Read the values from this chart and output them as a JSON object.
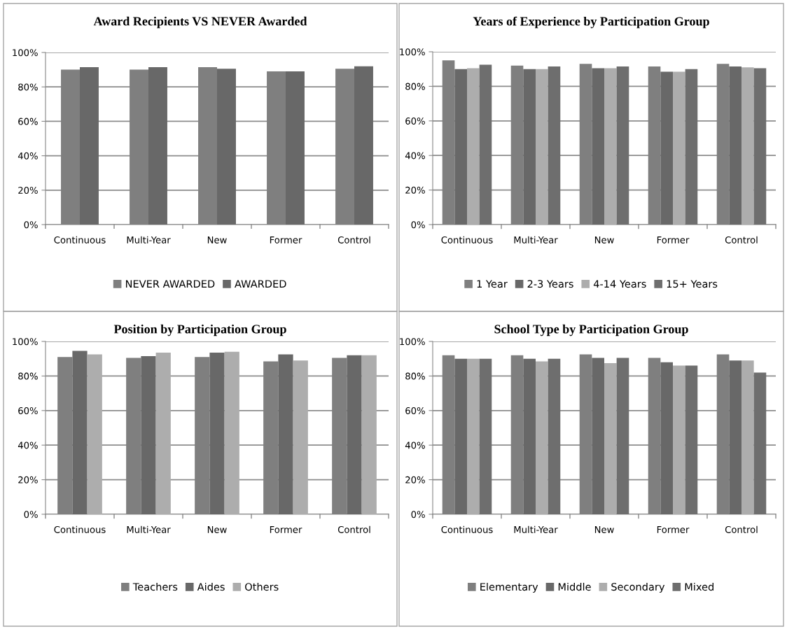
{
  "chart_data": [
    {
      "type": "bar",
      "title": "Award Recipients VS NEVER Awarded",
      "categories": [
        "Continuous",
        "Multi-Year",
        "New",
        "Former",
        "Control"
      ],
      "ylim": [
        0,
        100
      ],
      "yticks": [
        {
          "value": 0,
          "label": "0%"
        },
        {
          "value": 20,
          "label": "20%"
        },
        {
          "value": 40,
          "label": "40%"
        },
        {
          "value": 60,
          "label": "60%"
        },
        {
          "value": 80,
          "label": "80%"
        },
        {
          "value": 100,
          "label": "100%"
        }
      ],
      "grid": "y",
      "legend": "bottom",
      "series": [
        {
          "name": "NEVER AWARDED",
          "color": "#7f7f7f",
          "values": [
            90,
            90,
            91.5,
            89,
            90.5
          ]
        },
        {
          "name": "AWARDED",
          "color": "#686868",
          "values": [
            91.5,
            91.5,
            90.5,
            89,
            92
          ]
        }
      ]
    },
    {
      "type": "bar",
      "title": "Years of Experience by Participation Group",
      "categories": [
        "Continuous",
        "Multi-Year",
        "New",
        "Former",
        "Control"
      ],
      "ylim": [
        0,
        100
      ],
      "yticks": [
        {
          "value": 0,
          "label": "0%"
        },
        {
          "value": 20,
          "label": "20%"
        },
        {
          "value": 40,
          "label": "40%"
        },
        {
          "value": 60,
          "label": "60%"
        },
        {
          "value": 80,
          "label": "80%"
        },
        {
          "value": 100,
          "label": "100%"
        }
      ],
      "grid": "y",
      "legend": "bottom",
      "series": [
        {
          "name": "1 Year",
          "color": "#7f7f7f",
          "values": [
            95,
            92,
            93,
            91.5,
            93
          ]
        },
        {
          "name": "2-3 Years",
          "color": "#686868",
          "values": [
            90,
            90,
            90.5,
            88.5,
            91.5
          ]
        },
        {
          "name": "4-14 Years",
          "color": "#adadad",
          "values": [
            90.5,
            90,
            90.5,
            88.5,
            91
          ]
        },
        {
          "name": "15+ Years",
          "color": "#6e6e6e",
          "values": [
            92.5,
            91.5,
            91.5,
            90,
            90.5
          ]
        }
      ]
    },
    {
      "type": "bar",
      "title": "Position by Participation Group",
      "categories": [
        "Continuous",
        "Multi-Year",
        "New",
        "Former",
        "Control"
      ],
      "ylim": [
        0,
        100
      ],
      "yticks": [
        {
          "value": 0,
          "label": "0%"
        },
        {
          "value": 20,
          "label": "20%"
        },
        {
          "value": 40,
          "label": "40%"
        },
        {
          "value": 60,
          "label": "60%"
        },
        {
          "value": 80,
          "label": "80%"
        },
        {
          "value": 100,
          "label": "100%"
        }
      ],
      "grid": "y",
      "legend": "bottom",
      "series": [
        {
          "name": "Teachers",
          "color": "#7f7f7f",
          "values": [
            91,
            90.5,
            91,
            88.5,
            90.5
          ]
        },
        {
          "name": "Aides",
          "color": "#686868",
          "values": [
            94.5,
            91.5,
            93.5,
            92.5,
            92
          ]
        },
        {
          "name": "Others",
          "color": "#adadad",
          "values": [
            92.5,
            93.5,
            94,
            89,
            92
          ]
        }
      ]
    },
    {
      "type": "bar",
      "title": "School Type by Participation Group",
      "categories": [
        "Continuous",
        "Multi-Year",
        "New",
        "Former",
        "Control"
      ],
      "ylim": [
        0,
        100
      ],
      "yticks": [
        {
          "value": 0,
          "label": "0%"
        },
        {
          "value": 20,
          "label": "20%"
        },
        {
          "value": 40,
          "label": "40%"
        },
        {
          "value": 60,
          "label": "60%"
        },
        {
          "value": 80,
          "label": "80%"
        },
        {
          "value": 100,
          "label": "100%"
        }
      ],
      "grid": "y",
      "legend": "bottom",
      "series": [
        {
          "name": "Elementary",
          "color": "#7f7f7f",
          "values": [
            92,
            92,
            92.5,
            90.5,
            92.5
          ]
        },
        {
          "name": "Middle",
          "color": "#686868",
          "values": [
            90,
            90,
            90.5,
            88,
            89
          ]
        },
        {
          "name": "Secondary",
          "color": "#adadad",
          "values": [
            90,
            88.5,
            87.5,
            86,
            89
          ]
        },
        {
          "name": "Mixed",
          "color": "#6e6e6e",
          "values": [
            90,
            90,
            90.5,
            86,
            82
          ]
        }
      ]
    }
  ]
}
